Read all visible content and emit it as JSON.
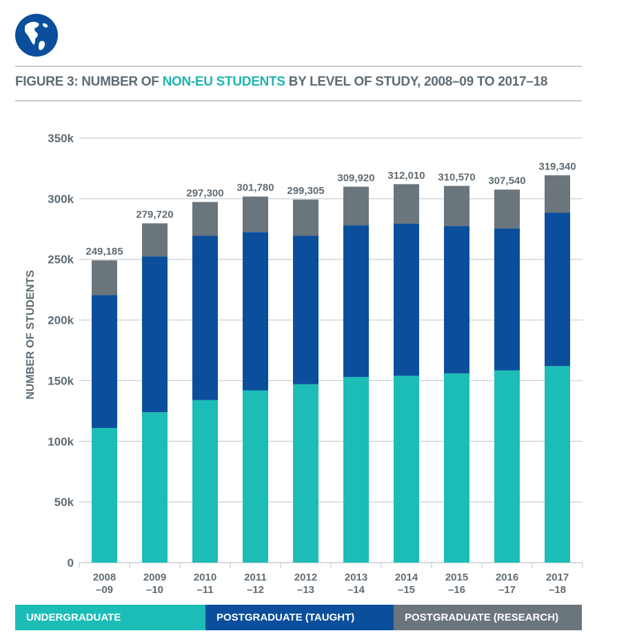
{
  "header": {
    "title_prefix": "FIGURE 3: NUMBER OF ",
    "title_highlight": "NON-EU STUDENTS",
    "title_suffix": " BY LEVEL OF STUDY, 2008–09 TO 2017–18"
  },
  "colors": {
    "undergraduate": "#1dbdb7",
    "postgraduate_taught": "#0b4f9c",
    "postgraduate_research": "#6b757c",
    "axis_text": "#5f6b73",
    "grid": "#c9cdd1",
    "title_highlight": "#1fb5b2"
  },
  "legend": [
    {
      "label": "UNDERGRADUATE",
      "color_key": "undergraduate"
    },
    {
      "label": "POSTGRADUATE (TAUGHT)",
      "color_key": "postgraduate_taught"
    },
    {
      "label": "POSTGRADUATE (RESEARCH)",
      "color_key": "postgraduate_research"
    }
  ],
  "chart_data": {
    "type": "bar",
    "stacked": true,
    "title": "FIGURE 3: NUMBER OF NON-EU STUDENTS BY LEVEL OF STUDY, 2008–09 TO 2017–18",
    "xlabel": "",
    "ylabel": "NUMBER OF STUDENTS",
    "ylim": [
      0,
      350000
    ],
    "yticks": [
      0,
      50000,
      100000,
      150000,
      200000,
      250000,
      300000,
      350000
    ],
    "ytick_labels": [
      "0",
      "50k",
      "100k",
      "150k",
      "200k",
      "250k",
      "300k",
      "350k"
    ],
    "grid": true,
    "legend_position": "bottom",
    "categories": [
      [
        "2008",
        "–09"
      ],
      [
        "2009",
        "–10"
      ],
      [
        "2010",
        "–11"
      ],
      [
        "2011",
        "–12"
      ],
      [
        "2012",
        "–13"
      ],
      [
        "2013",
        "–14"
      ],
      [
        "2014",
        "–15"
      ],
      [
        "2015",
        "–16"
      ],
      [
        "2016",
        "–17"
      ],
      [
        "2017",
        "–18"
      ]
    ],
    "series": [
      {
        "name": "UNDERGRADUATE",
        "color_key": "undergraduate",
        "values": [
          111000,
          124000,
          134000,
          142000,
          147000,
          153000,
          154000,
          156000,
          158500,
          162000
        ]
      },
      {
        "name": "POSTGRADUATE (TAUGHT)",
        "color_key": "postgraduate_taught",
        "values": [
          109500,
          128500,
          135500,
          130500,
          122500,
          125000,
          125500,
          121500,
          117000,
          126500
        ]
      },
      {
        "name": "POSTGRADUATE (RESEARCH)",
        "color_key": "postgraduate_research",
        "values": [
          28685,
          27220,
          27800,
          29280,
          29805,
          31920,
          32510,
          33070,
          32040,
          30840
        ]
      }
    ],
    "totals": [
      249185,
      279720,
      297300,
      301780,
      299305,
      309920,
      312010,
      310570,
      307540,
      319340
    ],
    "total_labels": [
      "249,185",
      "279,720",
      "297,300",
      "301,780",
      "299,305",
      "309,920",
      "312,010",
      "310,570",
      "307,540",
      "319,340"
    ]
  }
}
